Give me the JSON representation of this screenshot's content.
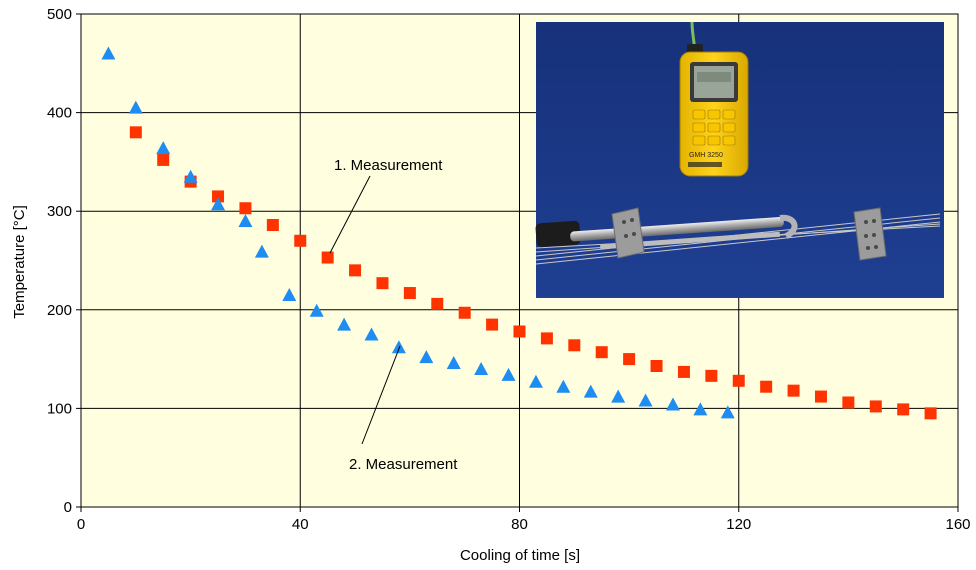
{
  "chart_data": {
    "type": "scatter",
    "xlabel": "Cooling of time [s]",
    "ylabel": "Temperature [°C]",
    "xlim": [
      0,
      160
    ],
    "ylim": [
      0,
      500
    ],
    "xticks": [
      0,
      40,
      80,
      120,
      160
    ],
    "yticks": [
      0,
      100,
      200,
      300,
      400,
      500
    ],
    "grid": true,
    "background": "#ffffe0",
    "series": [
      {
        "name": "1. Measurement",
        "marker": "square",
        "color": "#ff3300",
        "x": [
          10,
          15,
          20,
          25,
          30,
          35,
          40,
          45,
          50,
          55,
          60,
          65,
          70,
          75,
          80,
          85,
          90,
          95,
          100,
          105,
          110,
          115,
          120,
          125,
          130,
          135,
          140,
          145,
          150,
          155
        ],
        "y": [
          380,
          352,
          330,
          315,
          303,
          286,
          270,
          253,
          240,
          227,
          217,
          206,
          197,
          185,
          178,
          171,
          164,
          157,
          150,
          143,
          137,
          133,
          128,
          122,
          118,
          112,
          106,
          102,
          99,
          95
        ]
      },
      {
        "name": "2. Measurement",
        "marker": "triangle",
        "color": "#1e8cf0",
        "x": [
          5,
          10,
          15,
          20,
          25,
          30,
          33,
          38,
          43,
          48,
          53,
          58,
          63,
          68,
          73,
          78,
          83,
          88,
          93,
          98,
          103,
          108,
          113,
          118
        ],
        "y": [
          460,
          405,
          364,
          335,
          307,
          290,
          259,
          215,
          199,
          185,
          175,
          162,
          152,
          146,
          140,
          134,
          127,
          122,
          117,
          112,
          108,
          104,
          99,
          96
        ]
      }
    ],
    "annotations": [
      {
        "text": "1. Measurement",
        "target_series": 0,
        "target_x": 45,
        "target_y": 253
      },
      {
        "text": "2. Measurement",
        "target_series": 1,
        "target_x": 58,
        "target_y": 162
      }
    ],
    "inset_photo": {
      "subject": "handheld thermometer with probe",
      "device_label": "GMH 3250"
    }
  }
}
